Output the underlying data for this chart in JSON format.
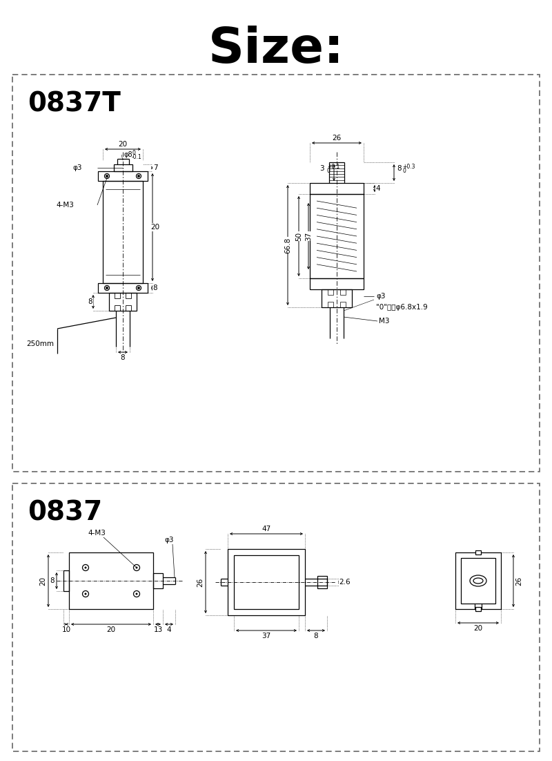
{
  "title": "Size:",
  "title_fontsize": 52,
  "bg_color": "#ffffff",
  "line_color": "#000000",
  "box1_label": "0837T",
  "box2_label": "0837",
  "label_fontsize": 28,
  "dim_fontsize": 7.5
}
